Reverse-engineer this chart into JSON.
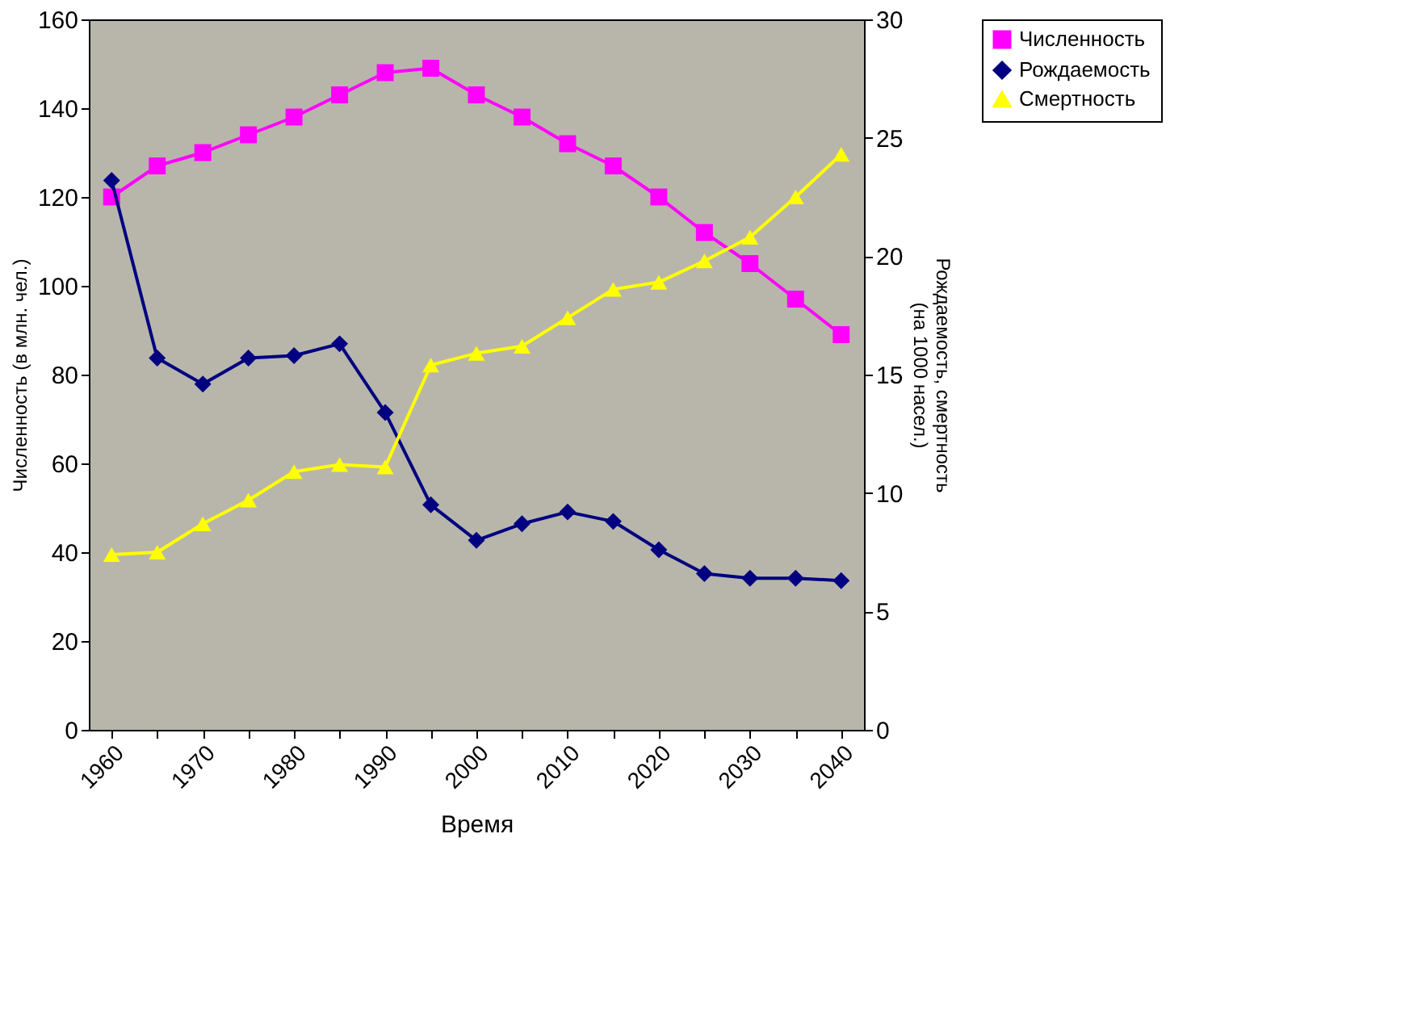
{
  "chart_data": {
    "type": "line",
    "xlabel": "Время",
    "ylabel": "Численность (в млн. чел.)",
    "y2label": "Рождаемость, смертность\n(на 1000 насел.)",
    "categories": [
      "1960",
      null,
      "1970",
      null,
      "1980",
      null,
      "1990",
      null,
      "2000",
      null,
      "2010",
      null,
      "2020",
      null,
      "2030",
      null,
      "2040"
    ],
    "ylim": [
      0,
      160
    ],
    "yticks": [
      0,
      20,
      40,
      60,
      80,
      100,
      120,
      140,
      160
    ],
    "y2lim": [
      0,
      30
    ],
    "y2ticks": [
      0,
      5,
      10,
      15,
      20,
      25,
      30
    ],
    "grid": false,
    "legend": "right",
    "line_style": "solid",
    "series": [
      {
        "name": "Численность",
        "color": "#ff00ff",
        "marker": "square",
        "values": [
          120,
          127,
          130,
          134,
          138,
          143,
          148,
          149,
          143,
          138,
          132,
          127,
          120,
          112,
          105,
          97,
          89
        ]
      },
      {
        "name": "Рождаемость",
        "color": "#000080",
        "marker": "diamond",
        "axis": "y2",
        "values": [
          23.2,
          15.7,
          14.6,
          15.7,
          15.8,
          16.3,
          13.4,
          9.5,
          8.0,
          8.7,
          9.2,
          8.8,
          7.6,
          6.6,
          6.4,
          6.4,
          6.3
        ]
      },
      {
        "name": "Смертность",
        "color": "#ffff00",
        "marker": "triangle",
        "axis": "y2",
        "values": [
          7.4,
          7.5,
          8.7,
          9.7,
          10.9,
          11.2,
          11.1,
          15.4,
          15.9,
          16.2,
          17.4,
          18.6,
          18.9,
          19.8,
          20.8,
          22.5,
          24.3
        ]
      }
    ]
  }
}
